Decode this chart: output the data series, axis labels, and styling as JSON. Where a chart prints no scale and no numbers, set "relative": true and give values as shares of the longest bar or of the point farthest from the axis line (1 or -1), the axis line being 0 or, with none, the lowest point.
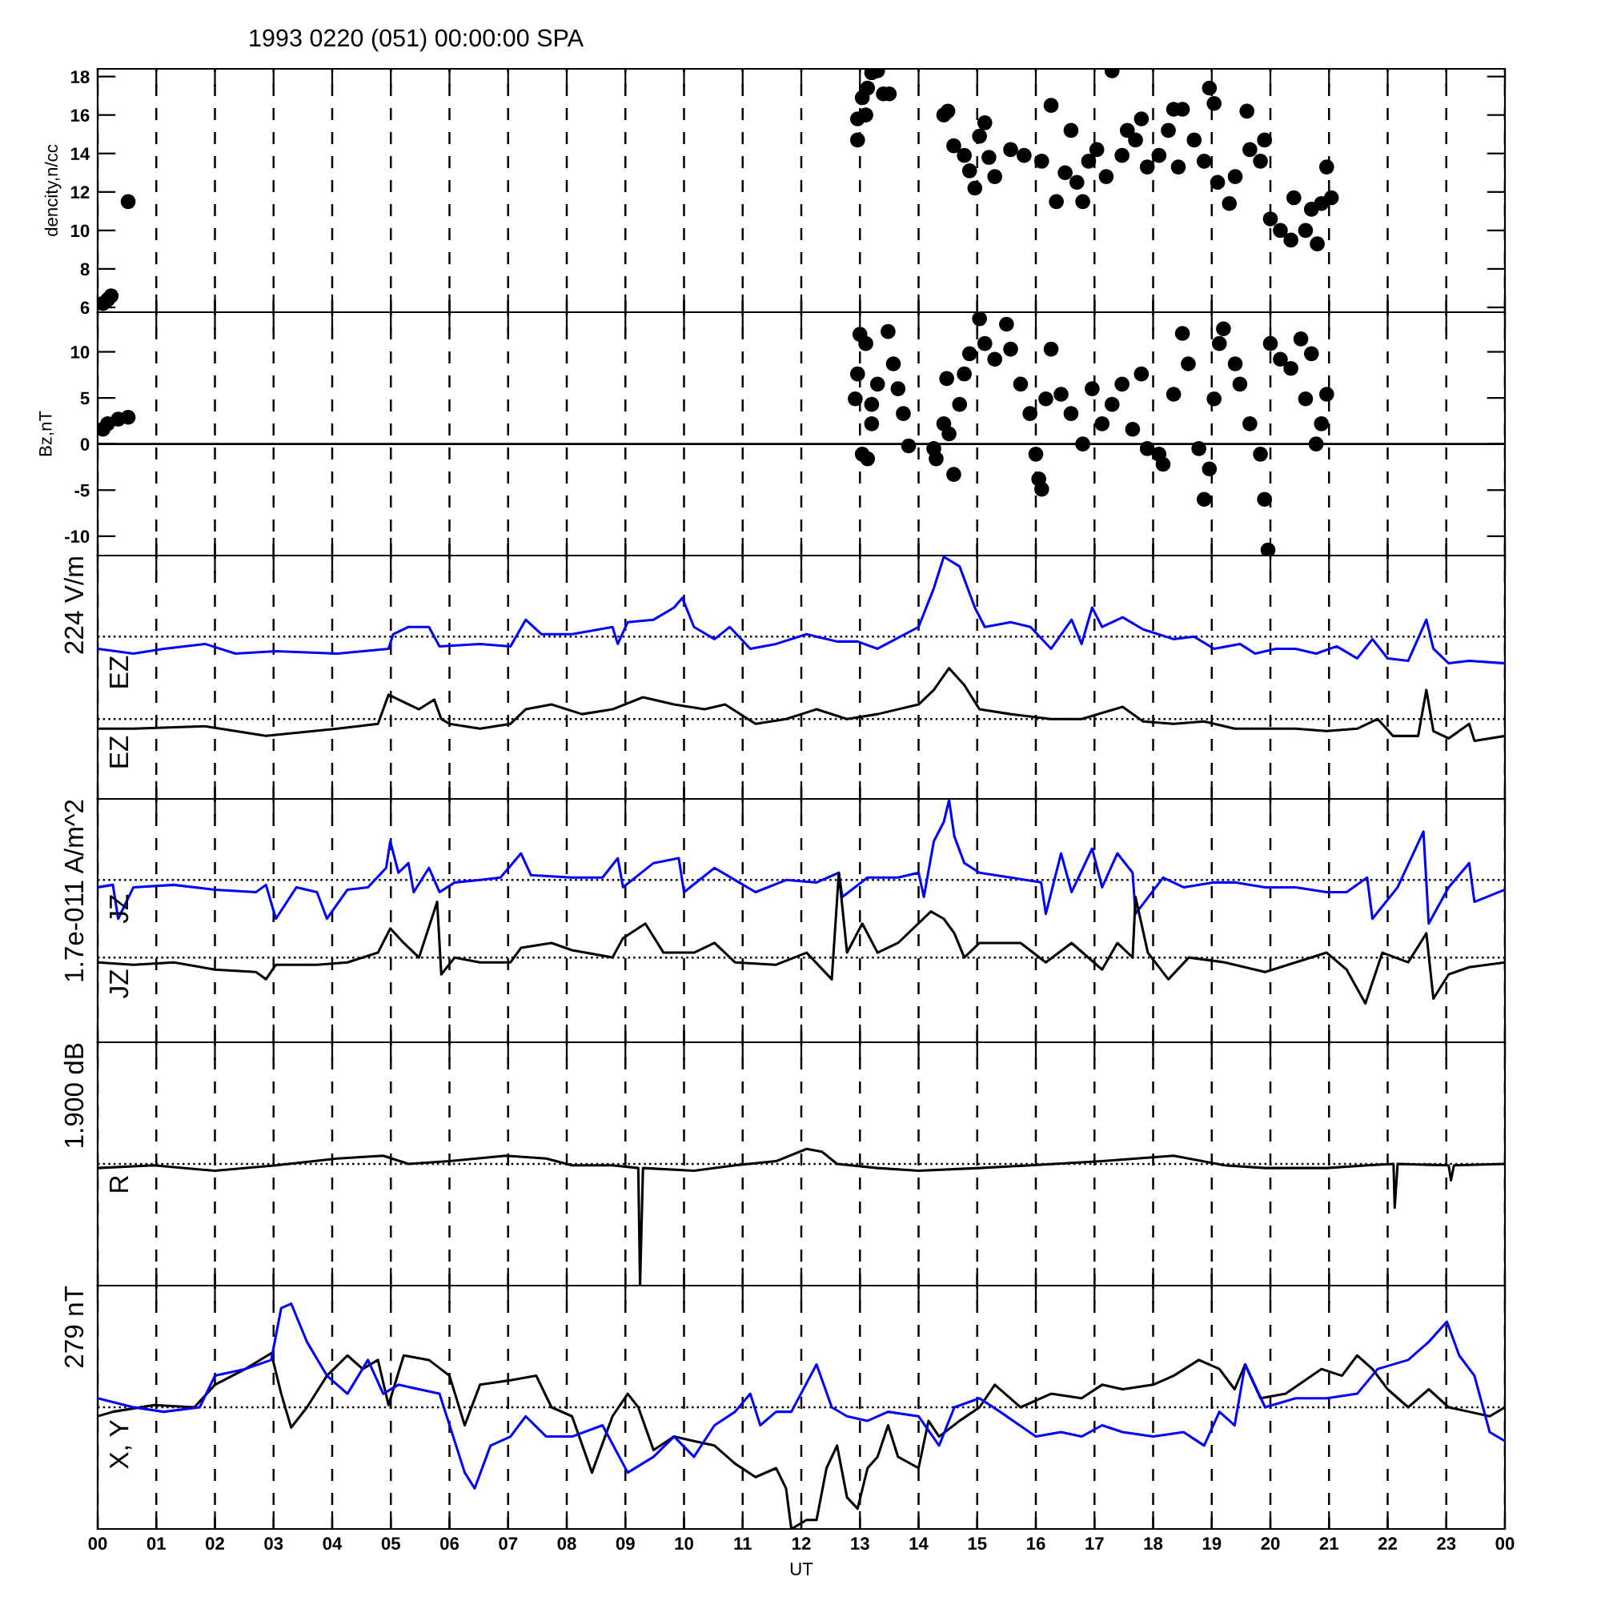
{
  "chart_data": [
    {
      "type": "scatter",
      "title": "1993 0220 (051) 00:00:00 SPA",
      "ylabel": "dencity,n/cc",
      "marker": "circle",
      "grid": "x",
      "tick_labels": "y",
      "xlim": [
        0,
        24
      ],
      "ylim": [
        5.75,
        18.4
      ],
      "yticks": [
        6,
        8,
        10,
        12,
        14,
        16,
        18
      ],
      "xticks": [
        {
          "value": 0,
          "label": null
        },
        {
          "value": 1,
          "label": null
        },
        {
          "value": 2,
          "label": null
        },
        {
          "value": 3,
          "label": null
        },
        {
          "value": 4,
          "label": null
        },
        {
          "value": 5,
          "label": null
        },
        {
          "value": 6,
          "label": null
        },
        {
          "value": 7,
          "label": null
        },
        {
          "value": 8,
          "label": null
        },
        {
          "value": 9,
          "label": null
        },
        {
          "value": 10,
          "label": null
        },
        {
          "value": 11,
          "label": null
        },
        {
          "value": 12,
          "label": null
        },
        {
          "value": 13,
          "label": null
        },
        {
          "value": 14,
          "label": null
        },
        {
          "value": 15,
          "label": null
        },
        {
          "value": 16,
          "label": null
        },
        {
          "value": 17,
          "label": null
        },
        {
          "value": 18,
          "label": null
        },
        {
          "value": 19,
          "label": null
        },
        {
          "value": 20,
          "label": null
        },
        {
          "value": 21,
          "label": null
        },
        {
          "value": 22,
          "label": null
        },
        {
          "value": 23,
          "label": null
        },
        {
          "value": 24,
          "label": null
        }
      ],
      "series": [
        {
          "color": "#000000",
          "x": [
            0.09,
            0.17,
            0.23,
            0.52,
            12.96,
            12.96,
            13.04,
            13.13,
            13.2,
            13.3,
            13.1,
            13.4,
            13.5,
            14.43,
            14.5,
            14.6,
            14.78,
            14.87,
            14.96,
            15.04,
            15.13,
            15.2,
            15.3,
            15.57,
            15.8,
            16.1,
            16.26,
            16.35,
            16.5,
            16.6,
            16.7,
            16.8,
            16.9,
            17.04,
            17.2,
            17.3,
            17.47,
            17.56,
            17.7,
            17.8,
            17.9,
            18.1,
            18.26,
            18.35,
            18.43,
            18.5,
            18.7,
            18.87,
            18.96,
            19.04,
            19.1,
            19.3,
            19.4,
            19.6,
            19.65,
            19.83,
            19.9,
            20.0,
            20.17,
            20.35,
            20.4,
            20.6,
            20.7,
            20.8,
            20.87,
            20.96,
            21.04
          ],
          "values": [
            6.2,
            6.4,
            6.6,
            11.5,
            14.7,
            15.8,
            16.9,
            17.4,
            18.2,
            18.3,
            16.0,
            17.1,
            17.1,
            16.0,
            16.2,
            14.4,
            13.9,
            13.1,
            12.2,
            14.9,
            15.6,
            13.8,
            12.8,
            14.2,
            13.9,
            13.6,
            16.5,
            11.5,
            13.0,
            15.2,
            12.5,
            11.5,
            13.6,
            14.2,
            12.8,
            18.3,
            13.9,
            15.2,
            14.7,
            15.8,
            13.3,
            13.9,
            15.2,
            16.3,
            13.3,
            16.3,
            14.7,
            13.6,
            17.4,
            16.6,
            12.5,
            11.4,
            12.8,
            16.2,
            14.2,
            13.6,
            14.7,
            10.6,
            10.0,
            9.5,
            11.7,
            10.0,
            11.1,
            9.3,
            11.4,
            13.3,
            11.7
          ]
        }
      ]
    },
    {
      "type": "scatter",
      "ylabel": "Bz,nT",
      "marker": "circle",
      "grid": "x",
      "tick_labels": "y",
      "xlim": [
        0,
        24
      ],
      "ylim": [
        -12.1,
        14.3
      ],
      "yticks": [
        -10,
        -5,
        0,
        5,
        10
      ],
      "xticks": [
        {
          "value": 0,
          "label": null
        },
        {
          "value": 1,
          "label": null
        },
        {
          "value": 2,
          "label": null
        },
        {
          "value": 3,
          "label": null
        },
        {
          "value": 4,
          "label": null
        },
        {
          "value": 5,
          "label": null
        },
        {
          "value": 6,
          "label": null
        },
        {
          "value": 7,
          "label": null
        },
        {
          "value": 8,
          "label": null
        },
        {
          "value": 9,
          "label": null
        },
        {
          "value": 10,
          "label": null
        },
        {
          "value": 11,
          "label": null
        },
        {
          "value": 12,
          "label": null
        },
        {
          "value": 13,
          "label": null
        },
        {
          "value": 14,
          "label": null
        },
        {
          "value": 15,
          "label": null
        },
        {
          "value": 16,
          "label": null
        },
        {
          "value": 17,
          "label": null
        },
        {
          "value": 18,
          "label": null
        },
        {
          "value": 19,
          "label": null
        },
        {
          "value": 20,
          "label": null
        },
        {
          "value": 21,
          "label": null
        },
        {
          "value": 22,
          "label": null
        },
        {
          "value": 23,
          "label": null
        },
        {
          "value": 24,
          "label": null
        }
      ],
      "ref_lines": [
        {
          "axis": "y",
          "value": 0,
          "color": "#000000",
          "line_style": "solid"
        }
      ],
      "series": [
        {
          "color": "#000000",
          "x": [
            0.09,
            0.17,
            0.35,
            0.52,
            12.92,
            12.96,
            13.0,
            13.1,
            13.04,
            13.13,
            13.2,
            13.2,
            13.3,
            13.48,
            13.57,
            13.65,
            13.74,
            13.83,
            14.26,
            14.3,
            14.43,
            14.48,
            14.52,
            14.6,
            14.7,
            14.78,
            14.87,
            15.04,
            15.13,
            15.3,
            15.5,
            15.57,
            15.74,
            15.9,
            16.0,
            16.05,
            16.1,
            16.17,
            16.26,
            16.43,
            16.6,
            16.8,
            16.96,
            17.13,
            17.3,
            17.47,
            17.65,
            17.8,
            17.9,
            18.1,
            18.17,
            18.35,
            18.5,
            18.6,
            18.78,
            18.87,
            18.96,
            19.04,
            19.13,
            19.2,
            19.4,
            19.48,
            19.65,
            19.83,
            19.9,
            19.96,
            20.0,
            20.17,
            20.35,
            20.52,
            20.6,
            20.7,
            20.78,
            20.87,
            20.96
          ],
          "values": [
            1.6,
            2.2,
            2.7,
            2.9,
            4.9,
            7.6,
            11.9,
            10.9,
            -1.1,
            -1.6,
            2.2,
            4.3,
            6.5,
            12.2,
            8.7,
            6.0,
            3.3,
            -0.2,
            -0.5,
            -1.6,
            2.2,
            7.1,
            1.1,
            -3.3,
            4.3,
            7.6,
            9.8,
            13.6,
            10.9,
            9.2,
            13.0,
            10.3,
            6.5,
            3.3,
            -1.1,
            -3.8,
            -4.9,
            4.9,
            10.3,
            5.4,
            3.3,
            0.0,
            6.0,
            2.2,
            4.3,
            6.5,
            1.6,
            7.6,
            -0.5,
            -1.1,
            -2.2,
            5.4,
            12.0,
            8.7,
            -0.5,
            -6.0,
            -2.7,
            4.9,
            10.9,
            12.5,
            8.7,
            6.5,
            2.2,
            -1.1,
            -6.0,
            -11.5,
            10.9,
            9.2,
            8.2,
            11.4,
            4.9,
            9.8,
            0.0,
            2.2,
            5.4
          ]
        }
      ]
    },
    {
      "type": "line",
      "relative": true,
      "ylabel": "224 V/m",
      "grid": "x",
      "tick_labels": false,
      "marker": "none",
      "line_style": "solid",
      "xlim": [
        0,
        24
      ],
      "xticks": [
        {
          "value": 0,
          "label": null
        },
        {
          "value": 1,
          "label": null
        },
        {
          "value": 2,
          "label": null
        },
        {
          "value": 3,
          "label": null
        },
        {
          "value": 4,
          "label": null
        },
        {
          "value": 5,
          "label": null
        },
        {
          "value": 6,
          "label": null
        },
        {
          "value": 7,
          "label": null
        },
        {
          "value": 8,
          "label": null
        },
        {
          "value": 9,
          "label": null
        },
        {
          "value": 10,
          "label": null
        },
        {
          "value": 11,
          "label": null
        },
        {
          "value": 12,
          "label": null
        },
        {
          "value": 13,
          "label": null
        },
        {
          "value": 14,
          "label": null
        },
        {
          "value": 15,
          "label": null
        },
        {
          "value": 16,
          "label": null
        },
        {
          "value": 17,
          "label": null
        },
        {
          "value": 18,
          "label": null
        },
        {
          "value": 19,
          "label": null
        },
        {
          "value": 20,
          "label": null
        },
        {
          "value": 21,
          "label": null
        },
        {
          "value": 22,
          "label": null
        },
        {
          "value": 23,
          "label": null
        },
        {
          "value": 24,
          "label": null
        }
      ],
      "ref_lines": [
        {
          "axis": "y",
          "value": 0.67,
          "color": "#000000",
          "line_style": "dotted"
        },
        {
          "axis": "y",
          "value": 0.33,
          "color": "#000000",
          "line_style": "dotted"
        }
      ],
      "series": [
        {
          "name": "EZ",
          "color": "#0000ff",
          "x": [
            0,
            0.61,
            1.13,
            1.83,
            2.35,
            3.04,
            4.09,
            4.96,
            5.04,
            5.3,
            5.65,
            5.83,
            6.52,
            7.04,
            7.3,
            7.57,
            8.09,
            8.78,
            8.87,
            9.04,
            9.48,
            9.83,
            9.97,
            10.17,
            10.52,
            10.78,
            11.13,
            11.57,
            12.09,
            12.61,
            12.96,
            13.3,
            14.0,
            14.26,
            14.43,
            14.7,
            14.96,
            15.13,
            15.57,
            15.91,
            16.26,
            16.61,
            16.78,
            16.96,
            17.13,
            17.48,
            17.83,
            18.35,
            18.7,
            19.04,
            19.48,
            19.74,
            20.09,
            20.43,
            20.78,
            21.13,
            21.48,
            21.74,
            22.0,
            22.35,
            22.66,
            22.78,
            23.04,
            23.39,
            24.0
          ],
          "values": [
            0.62,
            0.6,
            0.62,
            0.64,
            0.6,
            0.61,
            0.6,
            0.62,
            0.68,
            0.71,
            0.71,
            0.63,
            0.64,
            0.63,
            0.74,
            0.68,
            0.68,
            0.71,
            0.64,
            0.73,
            0.74,
            0.79,
            0.83,
            0.71,
            0.66,
            0.71,
            0.62,
            0.64,
            0.68,
            0.65,
            0.65,
            0.62,
            0.71,
            0.87,
            1.0,
            0.96,
            0.79,
            0.71,
            0.73,
            0.71,
            0.62,
            0.74,
            0.64,
            0.79,
            0.71,
            0.75,
            0.7,
            0.66,
            0.67,
            0.62,
            0.64,
            0.6,
            0.62,
            0.62,
            0.6,
            0.63,
            0.58,
            0.66,
            0.58,
            0.57,
            0.74,
            0.62,
            0.56,
            0.57,
            0.56
          ]
        },
        {
          "name": "EZ",
          "color": "#000000",
          "x": [
            0,
            0.61,
            1.83,
            2.87,
            4.09,
            4.78,
            4.96,
            5.13,
            5.48,
            5.74,
            5.86,
            6.0,
            6.52,
            7.04,
            7.3,
            7.74,
            8.26,
            8.78,
            9.3,
            9.83,
            10.35,
            10.7,
            11.22,
            11.74,
            12.26,
            12.78,
            13.3,
            14.0,
            14.26,
            14.52,
            14.78,
            15.04,
            15.57,
            16.26,
            16.78,
            17.48,
            17.83,
            18.35,
            18.87,
            19.39,
            19.91,
            20.43,
            20.96,
            21.48,
            21.83,
            22.09,
            22.52,
            22.66,
            22.78,
            23.04,
            23.39,
            23.48,
            24.0
          ],
          "values": [
            0.29,
            0.29,
            0.3,
            0.26,
            0.29,
            0.31,
            0.43,
            0.41,
            0.37,
            0.41,
            0.33,
            0.31,
            0.29,
            0.31,
            0.37,
            0.39,
            0.35,
            0.37,
            0.42,
            0.39,
            0.37,
            0.39,
            0.31,
            0.33,
            0.37,
            0.33,
            0.35,
            0.39,
            0.45,
            0.54,
            0.47,
            0.37,
            0.35,
            0.33,
            0.33,
            0.38,
            0.32,
            0.31,
            0.32,
            0.29,
            0.29,
            0.29,
            0.28,
            0.29,
            0.33,
            0.26,
            0.26,
            0.45,
            0.28,
            0.25,
            0.31,
            0.24,
            0.26
          ]
        }
      ]
    },
    {
      "type": "line",
      "relative": true,
      "ylabel": "1.7e-011 A/m^2",
      "grid": "x",
      "tick_labels": false,
      "marker": "none",
      "line_style": "solid",
      "xlim": [
        0,
        24
      ],
      "xticks": [
        {
          "value": 0,
          "label": null
        },
        {
          "value": 1,
          "label": null
        },
        {
          "value": 2,
          "label": null
        },
        {
          "value": 3,
          "label": null
        },
        {
          "value": 4,
          "label": null
        },
        {
          "value": 5,
          "label": null
        },
        {
          "value": 6,
          "label": null
        },
        {
          "value": 7,
          "label": null
        },
        {
          "value": 8,
          "label": null
        },
        {
          "value": 9,
          "label": null
        },
        {
          "value": 10,
          "label": null
        },
        {
          "value": 11,
          "label": null
        },
        {
          "value": 12,
          "label": null
        },
        {
          "value": 13,
          "label": null
        },
        {
          "value": 14,
          "label": null
        },
        {
          "value": 15,
          "label": null
        },
        {
          "value": 16,
          "label": null
        },
        {
          "value": 17,
          "label": null
        },
        {
          "value": 18,
          "label": null
        },
        {
          "value": 19,
          "label": null
        },
        {
          "value": 20,
          "label": null
        },
        {
          "value": 21,
          "label": null
        },
        {
          "value": 22,
          "label": null
        },
        {
          "value": 23,
          "label": null
        },
        {
          "value": 24,
          "label": null
        }
      ],
      "ref_lines": [
        {
          "axis": "y",
          "value": 0.67,
          "color": "#000000",
          "line_style": "dotted"
        },
        {
          "axis": "y",
          "value": 0.35,
          "color": "#000000",
          "line_style": "dotted"
        }
      ],
      "series": [
        {
          "name": "JZ",
          "color": "#0000ff",
          "x": [
            0,
            0.26,
            0.35,
            0.61,
            1.3,
            2.0,
            2.7,
            2.87,
            3.04,
            3.39,
            3.74,
            3.91,
            4.26,
            4.61,
            4.92,
            4.99,
            5.13,
            5.3,
            5.39,
            5.65,
            5.83,
            6.09,
            6.52,
            6.87,
            7.22,
            7.39,
            8.09,
            8.61,
            8.87,
            8.96,
            9.48,
            9.91,
            10.0,
            10.52,
            10.87,
            11.22,
            11.74,
            12.26,
            12.64,
            12.7,
            13.13,
            13.65,
            14.0,
            14.09,
            14.26,
            14.43,
            14.52,
            14.61,
            14.78,
            15.04,
            15.57,
            16.09,
            16.17,
            16.43,
            16.61,
            16.96,
            17.13,
            17.39,
            17.65,
            17.7,
            18.17,
            18.52,
            19.04,
            19.39,
            19.91,
            20.43,
            20.96,
            21.3,
            21.65,
            21.74,
            22.17,
            22.61,
            22.7,
            23.04,
            23.39,
            23.48,
            24.0
          ],
          "values": [
            0.64,
            0.65,
            0.51,
            0.64,
            0.65,
            0.63,
            0.62,
            0.65,
            0.51,
            0.64,
            0.62,
            0.51,
            0.63,
            0.64,
            0.72,
            0.83,
            0.7,
            0.74,
            0.62,
            0.72,
            0.62,
            0.66,
            0.67,
            0.68,
            0.78,
            0.69,
            0.68,
            0.68,
            0.76,
            0.64,
            0.74,
            0.76,
            0.62,
            0.72,
            0.67,
            0.62,
            0.67,
            0.66,
            0.7,
            0.6,
            0.68,
            0.68,
            0.7,
            0.6,
            0.83,
            0.91,
            1.0,
            0.85,
            0.74,
            0.7,
            0.68,
            0.66,
            0.53,
            0.78,
            0.62,
            0.8,
            0.64,
            0.78,
            0.7,
            0.53,
            0.68,
            0.64,
            0.66,
            0.66,
            0.64,
            0.64,
            0.62,
            0.62,
            0.68,
            0.51,
            0.64,
            0.87,
            0.49,
            0.64,
            0.74,
            0.58,
            0.63
          ]
        },
        {
          "name": "JZ",
          "color": "#000000",
          "x": [
            0,
            0.61,
            1.3,
            2.0,
            2.7,
            2.87,
            3.04,
            3.74,
            4.26,
            4.78,
            4.99,
            5.22,
            5.48,
            5.79,
            5.86,
            6.09,
            6.52,
            7.04,
            7.22,
            7.74,
            8.09,
            8.78,
            8.96,
            9.34,
            9.65,
            10.17,
            10.52,
            10.87,
            11.57,
            12.09,
            12.52,
            12.64,
            12.78,
            13.04,
            13.3,
            13.65,
            14.21,
            14.43,
            14.61,
            14.78,
            15.04,
            15.74,
            16.17,
            16.61,
            17.13,
            17.39,
            17.65,
            17.7,
            17.91,
            18.26,
            18.61,
            19.22,
            19.91,
            20.43,
            20.96,
            21.3,
            21.62,
            21.91,
            22.35,
            22.66,
            22.78,
            23.04,
            23.39,
            24.0
          ],
          "values": [
            0.33,
            0.32,
            0.33,
            0.3,
            0.29,
            0.26,
            0.32,
            0.32,
            0.33,
            0.37,
            0.47,
            0.41,
            0.35,
            0.58,
            0.28,
            0.35,
            0.33,
            0.33,
            0.39,
            0.41,
            0.38,
            0.35,
            0.43,
            0.49,
            0.37,
            0.37,
            0.41,
            0.33,
            0.32,
            0.37,
            0.26,
            0.7,
            0.37,
            0.49,
            0.37,
            0.41,
            0.54,
            0.51,
            0.45,
            0.35,
            0.41,
            0.41,
            0.33,
            0.41,
            0.3,
            0.41,
            0.35,
            0.6,
            0.37,
            0.26,
            0.35,
            0.33,
            0.29,
            0.33,
            0.37,
            0.3,
            0.16,
            0.37,
            0.33,
            0.45,
            0.18,
            0.28,
            0.31,
            0.33
          ]
        }
      ]
    },
    {
      "type": "line",
      "relative": true,
      "ylabel": "1.900 dB",
      "grid": "x",
      "tick_labels": false,
      "marker": "none",
      "line_style": "solid",
      "xlim": [
        0,
        24
      ],
      "xticks": [
        {
          "value": 0,
          "label": null
        },
        {
          "value": 1,
          "label": null
        },
        {
          "value": 2,
          "label": null
        },
        {
          "value": 3,
          "label": null
        },
        {
          "value": 4,
          "label": null
        },
        {
          "value": 5,
          "label": null
        },
        {
          "value": 6,
          "label": null
        },
        {
          "value": 7,
          "label": null
        },
        {
          "value": 8,
          "label": null
        },
        {
          "value": 9,
          "label": null
        },
        {
          "value": 10,
          "label": null
        },
        {
          "value": 11,
          "label": null
        },
        {
          "value": 12,
          "label": null
        },
        {
          "value": 13,
          "label": null
        },
        {
          "value": 14,
          "label": null
        },
        {
          "value": 15,
          "label": null
        },
        {
          "value": 16,
          "label": null
        },
        {
          "value": 17,
          "label": null
        },
        {
          "value": 18,
          "label": null
        },
        {
          "value": 19,
          "label": null
        },
        {
          "value": 20,
          "label": null
        },
        {
          "value": 21,
          "label": null
        },
        {
          "value": 22,
          "label": null
        },
        {
          "value": 23,
          "label": null
        },
        {
          "value": 24,
          "label": null
        }
      ],
      "ref_lines": [
        {
          "axis": "y",
          "value": 0.89,
          "color": "#000000",
          "line_style": "dotted"
        }
      ],
      "series": [
        {
          "name": "R",
          "color": "#000000",
          "x": [
            0,
            0.96,
            2.0,
            3.04,
            4.09,
            4.87,
            5.3,
            6.0,
            6.96,
            7.65,
            8.09,
            8.78,
            9.22,
            9.25,
            9.3,
            10.17,
            10.87,
            11.57,
            12.09,
            12.35,
            12.61,
            13.3,
            14.0,
            15.04,
            15.91,
            17.13,
            18.35,
            19.22,
            19.91,
            20.96,
            21.65,
            22.1,
            22.12,
            22.17,
            23.04,
            23.08,
            23.13,
            24.0
          ],
          "values": [
            0.86,
            0.88,
            0.84,
            0.88,
            0.93,
            0.95,
            0.89,
            0.91,
            0.95,
            0.93,
            0.88,
            0.88,
            0.86,
            0.0,
            0.86,
            0.84,
            0.88,
            0.91,
            1.0,
            0.98,
            0.89,
            0.86,
            0.84,
            0.86,
            0.88,
            0.91,
            0.95,
            0.88,
            0.86,
            0.86,
            0.88,
            0.89,
            0.57,
            0.89,
            0.88,
            0.77,
            0.88,
            0.89
          ]
        }
      ]
    },
    {
      "type": "line",
      "relative": true,
      "ylabel": "279 nT",
      "xlabel": "UT",
      "grid": "x",
      "tick_labels": "x",
      "marker": "none",
      "line_style": "solid",
      "annotations": [
        "X, Y"
      ],
      "xlim": [
        0,
        24
      ],
      "xticks": [
        {
          "value": 0,
          "label": "00"
        },
        {
          "value": 1,
          "label": "01"
        },
        {
          "value": 2,
          "label": "02"
        },
        {
          "value": 3,
          "label": "03"
        },
        {
          "value": 4,
          "label": "04"
        },
        {
          "value": 5,
          "label": "05"
        },
        {
          "value": 6,
          "label": "06"
        },
        {
          "value": 7,
          "label": "07"
        },
        {
          "value": 8,
          "label": "08"
        },
        {
          "value": 9,
          "label": "09"
        },
        {
          "value": 10,
          "label": "10"
        },
        {
          "value": 11,
          "label": "11"
        },
        {
          "value": 12,
          "label": "12"
        },
        {
          "value": 13,
          "label": "13"
        },
        {
          "value": 14,
          "label": "14"
        },
        {
          "value": 15,
          "label": "15"
        },
        {
          "value": 16,
          "label": "16"
        },
        {
          "value": 17,
          "label": "17"
        },
        {
          "value": 18,
          "label": "18"
        },
        {
          "value": 19,
          "label": "19"
        },
        {
          "value": 20,
          "label": "20"
        },
        {
          "value": 21,
          "label": "21"
        },
        {
          "value": 22,
          "label": "22"
        },
        {
          "value": 23,
          "label": "23"
        },
        {
          "value": 24,
          "label": "00"
        }
      ],
      "ref_lines": [
        {
          "axis": "y",
          "value": 0.54,
          "color": "#000000",
          "line_style": "dotted"
        }
      ],
      "series": [
        {
          "color": "#000000",
          "x": [
            0,
            0.26,
            0.96,
            1.65,
            2.0,
            2.52,
            2.96,
            3.13,
            3.3,
            3.57,
            3.91,
            4.26,
            4.52,
            4.78,
            4.96,
            5.22,
            5.65,
            6.0,
            6.26,
            6.52,
            7.04,
            7.48,
            7.74,
            8.09,
            8.43,
            8.78,
            9.04,
            9.22,
            9.48,
            9.83,
            10.17,
            10.52,
            10.87,
            11.22,
            11.57,
            11.74,
            11.83,
            12.09,
            12.26,
            12.43,
            12.61,
            12.78,
            12.96,
            13.13,
            13.3,
            13.48,
            13.65,
            14.0,
            14.17,
            14.35,
            14.7,
            15.04,
            15.3,
            15.74,
            16.26,
            16.78,
            17.13,
            17.48,
            18.0,
            18.35,
            18.78,
            19.13,
            19.39,
            19.57,
            19.83,
            20.26,
            20.87,
            21.22,
            21.48,
            21.74,
            22.0,
            22.35,
            22.7,
            23.04,
            23.39,
            23.74,
            24.0
          ],
          "values": [
            0.5,
            0.52,
            0.55,
            0.54,
            0.64,
            0.71,
            0.78,
            0.6,
            0.45,
            0.54,
            0.68,
            0.77,
            0.71,
            0.75,
            0.55,
            0.77,
            0.75,
            0.68,
            0.46,
            0.64,
            0.66,
            0.68,
            0.54,
            0.5,
            0.25,
            0.5,
            0.6,
            0.54,
            0.35,
            0.41,
            0.39,
            0.37,
            0.29,
            0.23,
            0.27,
            0.18,
            0.0,
            0.04,
            0.04,
            0.27,
            0.37,
            0.14,
            0.09,
            0.27,
            0.32,
            0.46,
            0.32,
            0.27,
            0.48,
            0.41,
            0.48,
            0.54,
            0.64,
            0.54,
            0.6,
            0.58,
            0.64,
            0.62,
            0.64,
            0.68,
            0.75,
            0.71,
            0.62,
            0.73,
            0.58,
            0.6,
            0.71,
            0.68,
            0.77,
            0.71,
            0.62,
            0.54,
            0.62,
            0.54,
            0.52,
            0.5,
            0.54
          ]
        },
        {
          "color": "#0000ff",
          "x": [
            0,
            0.61,
            1.13,
            1.74,
            2.0,
            2.52,
            2.96,
            3.13,
            3.3,
            3.57,
            3.91,
            4.26,
            4.61,
            4.87,
            5.13,
            5.83,
            6.26,
            6.43,
            6.7,
            7.04,
            7.3,
            7.65,
            8.09,
            8.61,
            9.04,
            9.48,
            9.83,
            10.17,
            10.52,
            10.87,
            11.13,
            11.3,
            11.57,
            11.83,
            12.26,
            12.52,
            12.78,
            13.13,
            13.48,
            14.0,
            14.35,
            14.61,
            15.04,
            15.39,
            16.0,
            16.43,
            16.78,
            17.13,
            17.48,
            18.0,
            18.52,
            18.87,
            19.13,
            19.39,
            19.57,
            19.91,
            20.43,
            20.96,
            21.48,
            21.83,
            22.35,
            22.7,
            23.01,
            23.22,
            23.48,
            23.74,
            24.0
          ],
          "values": [
            0.58,
            0.54,
            0.52,
            0.54,
            0.68,
            0.71,
            0.75,
            0.98,
            1.0,
            0.83,
            0.68,
            0.6,
            0.75,
            0.6,
            0.64,
            0.6,
            0.25,
            0.18,
            0.37,
            0.41,
            0.5,
            0.41,
            0.41,
            0.46,
            0.25,
            0.32,
            0.41,
            0.32,
            0.46,
            0.52,
            0.6,
            0.46,
            0.52,
            0.52,
            0.73,
            0.54,
            0.5,
            0.48,
            0.52,
            0.5,
            0.37,
            0.54,
            0.58,
            0.52,
            0.41,
            0.43,
            0.41,
            0.46,
            0.43,
            0.41,
            0.43,
            0.37,
            0.52,
            0.46,
            0.73,
            0.54,
            0.58,
            0.58,
            0.6,
            0.71,
            0.75,
            0.83,
            0.92,
            0.77,
            0.68,
            0.43,
            0.39
          ]
        }
      ]
    }
  ]
}
